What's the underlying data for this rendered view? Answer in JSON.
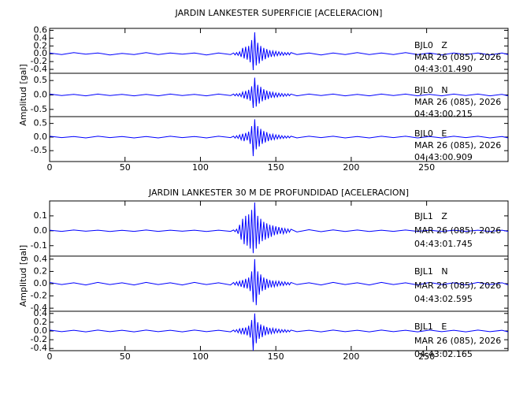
{
  "chart_data": [
    {
      "type": "line",
      "title": "JARDIN LANKESTER SUPERFICIE [ACELERACION]",
      "ylabel": "Amplitud [gal]",
      "color": "#0000ff",
      "xlim": [
        0,
        304
      ],
      "xticks": [
        0,
        50,
        100,
        150,
        200,
        250
      ],
      "x": [
        0,
        8,
        16,
        24,
        32,
        40,
        48,
        56,
        64,
        72,
        80,
        88,
        96,
        104,
        112,
        120,
        122,
        123,
        124,
        125,
        126,
        127,
        128,
        129,
        130,
        131,
        132,
        133,
        134,
        135,
        136,
        137,
        138,
        139,
        140,
        141,
        142,
        143,
        144,
        145,
        146,
        147,
        148,
        149,
        150,
        151,
        152,
        153,
        154,
        155,
        156,
        157,
        158,
        159,
        160,
        164,
        172,
        180,
        188,
        196,
        204,
        212,
        220,
        228,
        236,
        244,
        252,
        260,
        268,
        276,
        284,
        292,
        300,
        304
      ],
      "panels": [
        {
          "station": "BJL0   Z",
          "date": "MAR 26 (085), 2026",
          "time": "04:43:01.490",
          "ylim": [
            -0.5,
            0.65
          ],
          "yticks": [
            0.6,
            0.4,
            0.2,
            {
              "value": 0,
              "label": "0.0"
            },
            -0.2,
            -0.4
          ],
          "values": [
            0.02,
            -0.02,
            0.03,
            -0.01,
            0.02,
            -0.03,
            0.01,
            -0.02,
            0.03,
            -0.02,
            0.02,
            -0.01,
            0.02,
            -0.03,
            0.02,
            -0.02,
            0.02,
            -0.03,
            0.03,
            -0.04,
            0.05,
            -0.08,
            0.15,
            -0.12,
            0.18,
            -0.15,
            0.2,
            -0.22,
            0.35,
            -0.42,
            0.55,
            -0.3,
            0.28,
            -0.25,
            0.2,
            -0.18,
            0.15,
            -0.14,
            0.12,
            -0.1,
            0.09,
            -0.08,
            0.07,
            -0.06,
            0.06,
            -0.05,
            0.05,
            -0.04,
            0.04,
            -0.04,
            0.03,
            -0.03,
            0.03,
            -0.03,
            0.03,
            -0.02,
            0.02,
            -0.03,
            0.02,
            -0.02,
            0.03,
            -0.02,
            0.02,
            -0.02,
            0.03,
            -0.02,
            0.02,
            -0.03,
            0.02,
            -0.02,
            0.02,
            -0.03,
            0.02,
            -0.02
          ]
        },
        {
          "station": "BJL0   N",
          "date": "MAR 26 (085), 2026",
          "time": "04:43:00.215",
          "ylim": [
            -0.75,
            0.75
          ],
          "yticks": [
            0.5,
            {
              "value": 0,
              "label": "0.0"
            },
            -0.5
          ],
          "values": [
            0.03,
            -0.02,
            0.02,
            -0.03,
            0.03,
            -0.02,
            0.02,
            -0.03,
            0.02,
            -0.03,
            0.03,
            -0.02,
            0.02,
            -0.03,
            0.03,
            -0.02,
            0.03,
            -0.03,
            0.04,
            -0.04,
            0.05,
            -0.06,
            0.1,
            -0.12,
            0.14,
            -0.15,
            0.18,
            -0.2,
            0.3,
            -0.45,
            0.6,
            -0.4,
            0.35,
            -0.3,
            0.28,
            -0.22,
            0.2,
            -0.18,
            0.15,
            -0.14,
            0.12,
            -0.1,
            0.09,
            -0.08,
            0.07,
            -0.07,
            0.06,
            -0.05,
            0.05,
            -0.05,
            0.04,
            -0.04,
            0.04,
            -0.03,
            0.03,
            -0.03,
            0.03,
            -0.02,
            0.03,
            -0.03,
            0.02,
            -0.03,
            0.03,
            -0.02,
            0.03,
            -0.03,
            0.02,
            -0.03,
            0.03,
            -0.02,
            0.03,
            -0.03,
            0.02,
            -0.03
          ]
        },
        {
          "station": "BJL0   E",
          "date": "MAR 26 (085), 2026",
          "time": "04:43:00.909",
          "ylim": [
            -0.9,
            0.75
          ],
          "yticks": [
            0.5,
            {
              "value": 0,
              "label": "0.0"
            },
            -0.5
          ],
          "values": [
            0.03,
            -0.02,
            0.02,
            -0.03,
            0.03,
            -0.02,
            0.02,
            -0.03,
            0.02,
            -0.03,
            0.03,
            -0.02,
            0.02,
            -0.03,
            0.03,
            -0.02,
            0.03,
            -0.04,
            0.05,
            -0.05,
            0.08,
            -0.1,
            0.12,
            -0.15,
            0.15,
            -0.12,
            0.2,
            -0.25,
            0.4,
            -0.7,
            0.65,
            -0.45,
            0.4,
            -0.35,
            0.3,
            -0.25,
            0.22,
            -0.2,
            0.18,
            -0.15,
            0.12,
            -0.12,
            0.1,
            -0.09,
            0.08,
            -0.07,
            0.07,
            -0.06,
            0.05,
            -0.05,
            0.04,
            -0.04,
            0.04,
            -0.03,
            0.03,
            -0.03,
            0.03,
            -0.02,
            0.03,
            -0.03,
            0.02,
            -0.03,
            0.03,
            -0.02,
            0.03,
            -0.03,
            0.02,
            -0.03,
            0.03,
            -0.02,
            0.03,
            -0.03,
            0.02,
            -0.03
          ]
        }
      ]
    },
    {
      "type": "line",
      "title": "JARDIN LANKESTER 30 M DE PROFUNDIDAD [ACELERACION]",
      "ylabel": "Amplitud [gal]",
      "color": "#0000ff",
      "xlim": [
        0,
        304
      ],
      "xticks": [
        0,
        50,
        100,
        150,
        200,
        250
      ],
      "x": [
        0,
        8,
        16,
        24,
        32,
        40,
        48,
        56,
        64,
        72,
        80,
        88,
        96,
        104,
        112,
        120,
        122,
        123,
        124,
        125,
        126,
        127,
        128,
        129,
        130,
        131,
        132,
        133,
        134,
        135,
        136,
        137,
        138,
        139,
        140,
        141,
        142,
        143,
        144,
        145,
        146,
        147,
        148,
        149,
        150,
        151,
        152,
        153,
        154,
        155,
        156,
        157,
        158,
        159,
        160,
        164,
        172,
        180,
        188,
        196,
        204,
        212,
        220,
        228,
        236,
        244,
        252,
        260,
        268,
        276,
        284,
        292,
        300,
        304
      ],
      "panels": [
        {
          "station": "BJL1   Z",
          "date": "MAR 26 (085), 2026",
          "time": "04:43:01.745",
          "ylim": [
            -0.17,
            0.2
          ],
          "yticks": [
            0.1,
            {
              "value": 0,
              "label": "0.0"
            },
            -0.1
          ],
          "values": [
            0.004,
            -0.004,
            0.005,
            -0.003,
            0.004,
            -0.005,
            0.003,
            -0.004,
            0.005,
            -0.004,
            0.004,
            -0.003,
            0.004,
            -0.005,
            0.004,
            -0.004,
            0.005,
            -0.006,
            0.01,
            -0.02,
            0.04,
            -0.06,
            0.08,
            -0.09,
            0.1,
            -0.1,
            0.11,
            -0.12,
            0.14,
            -0.15,
            0.19,
            -0.12,
            0.1,
            -0.09,
            0.08,
            -0.07,
            0.06,
            -0.06,
            0.05,
            -0.05,
            0.04,
            -0.04,
            0.035,
            -0.03,
            0.03,
            -0.025,
            0.025,
            -0.02,
            0.02,
            -0.02,
            0.015,
            -0.015,
            0.012,
            -0.01,
            0.01,
            -0.008,
            0.007,
            -0.006,
            0.006,
            -0.005,
            0.005,
            -0.005,
            0.004,
            -0.004,
            0.005,
            -0.004,
            0.004,
            -0.005,
            0.004,
            -0.004,
            0.004,
            -0.005,
            0.004,
            -0.004
          ]
        },
        {
          "station": "BJL1   N",
          "date": "MAR 26 (085), 2026",
          "time": "04:43:02.595",
          "ylim": [
            -0.45,
            0.45
          ],
          "yticks": [
            0.4,
            0.2,
            {
              "value": 0,
              "label": "0.0"
            },
            -0.2,
            -0.4
          ],
          "values": [
            0.02,
            -0.015,
            0.015,
            -0.02,
            0.02,
            -0.015,
            0.015,
            -0.02,
            0.02,
            -0.015,
            0.015,
            -0.02,
            0.02,
            -0.015,
            0.015,
            -0.02,
            0.02,
            -0.02,
            0.03,
            -0.03,
            0.04,
            -0.05,
            0.06,
            -0.07,
            0.08,
            -0.08,
            0.1,
            -0.12,
            0.2,
            -0.3,
            0.4,
            -0.35,
            0.2,
            -0.18,
            0.15,
            -0.12,
            0.1,
            -0.1,
            0.08,
            -0.07,
            0.06,
            -0.06,
            0.05,
            -0.05,
            0.04,
            -0.04,
            0.04,
            -0.03,
            0.03,
            -0.03,
            0.03,
            -0.02,
            0.02,
            -0.02,
            0.02,
            -0.015,
            0.015,
            -0.02,
            0.02,
            -0.015,
            0.015,
            -0.02,
            0.02,
            -0.015,
            0.015,
            -0.02,
            0.02,
            -0.015,
            0.015,
            -0.02,
            0.02,
            -0.015,
            0.015,
            -0.02
          ]
        },
        {
          "station": "BJL1   E",
          "date": "MAR 26 (085), 2026",
          "time": "04:43:02.165",
          "ylim": [
            -0.45,
            0.45
          ],
          "yticks": [
            0.4,
            0.2,
            {
              "value": 0,
              "label": "0.0"
            },
            -0.2,
            -0.4
          ],
          "values": [
            0.02,
            -0.015,
            0.015,
            -0.02,
            0.02,
            -0.015,
            0.015,
            -0.02,
            0.02,
            -0.015,
            0.015,
            -0.02,
            0.02,
            -0.015,
            0.015,
            -0.02,
            0.02,
            -0.02,
            0.03,
            -0.04,
            0.05,
            -0.06,
            0.07,
            -0.08,
            0.08,
            -0.1,
            0.12,
            -0.15,
            0.25,
            -0.45,
            0.4,
            -0.28,
            0.2,
            -0.18,
            0.15,
            -0.14,
            0.12,
            -0.1,
            0.09,
            -0.08,
            0.07,
            -0.06,
            0.06,
            -0.05,
            0.05,
            -0.04,
            0.04,
            -0.04,
            0.03,
            -0.03,
            0.03,
            -0.03,
            0.02,
            -0.02,
            0.02,
            -0.015,
            0.015,
            -0.02,
            0.02,
            -0.015,
            0.015,
            -0.02,
            0.02,
            -0.015,
            0.015,
            -0.02,
            0.02,
            -0.015,
            0.015,
            -0.02,
            0.02,
            -0.015,
            0.015,
            -0.02
          ]
        }
      ]
    }
  ]
}
